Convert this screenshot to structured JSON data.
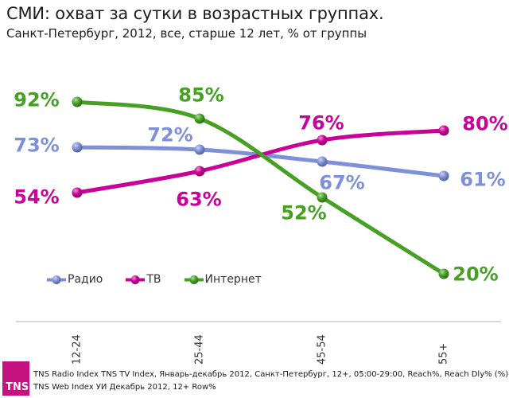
{
  "header": {
    "title": "СМИ: охват за сутки в возрастных группах.",
    "subtitle": "Санкт-Петербург, 2012, все, старше 12 лет, % от группы"
  },
  "chart_data": {
    "type": "line",
    "title": "СМИ: охват за сутки в возрастных группах.",
    "subtitle": "Санкт-Петербург, 2012, все, старше 12 лет, % от группы",
    "categories": [
      "12-24",
      "25-44",
      "45-54",
      "55+"
    ],
    "unit": "%",
    "ylim": [
      0,
      100
    ],
    "grid": false,
    "legend_position": "bottom-left",
    "series": [
      {
        "name": "Радио",
        "color": "#7d90d8",
        "values": [
          73,
          72,
          67,
          61
        ],
        "label_offsets": [
          [
            -51,
            -3
          ],
          [
            -37,
            -19
          ],
          [
            25,
            26
          ],
          [
            49,
            4
          ]
        ]
      },
      {
        "name": "ТВ",
        "color": "#cb0098",
        "values": [
          54,
          63,
          76,
          80
        ],
        "label_offsets": [
          [
            -51,
            5
          ],
          [
            -1,
            35
          ],
          [
            -1,
            -22
          ],
          [
            52,
            -9
          ]
        ]
      },
      {
        "name": "Интернет",
        "color": "#46a023",
        "values": [
          92,
          85,
          52,
          20
        ],
        "label_offsets": [
          [
            -51,
            -3
          ],
          [
            2,
            -30
          ],
          [
            -23,
            19
          ],
          [
            40,
            0
          ]
        ]
      }
    ]
  },
  "footer": {
    "logo_text": "TNS",
    "logo_color": "#c41380",
    "line1": "TNS Radio Index TNS TV Index, Январь-декабрь 2012, Санкт-Петербург, 12+, 05:00-29:00, Reach%, Reach Dly% (%)",
    "line2": "TNS Web Index УИ Декабрь 2012, 12+ Row%"
  }
}
